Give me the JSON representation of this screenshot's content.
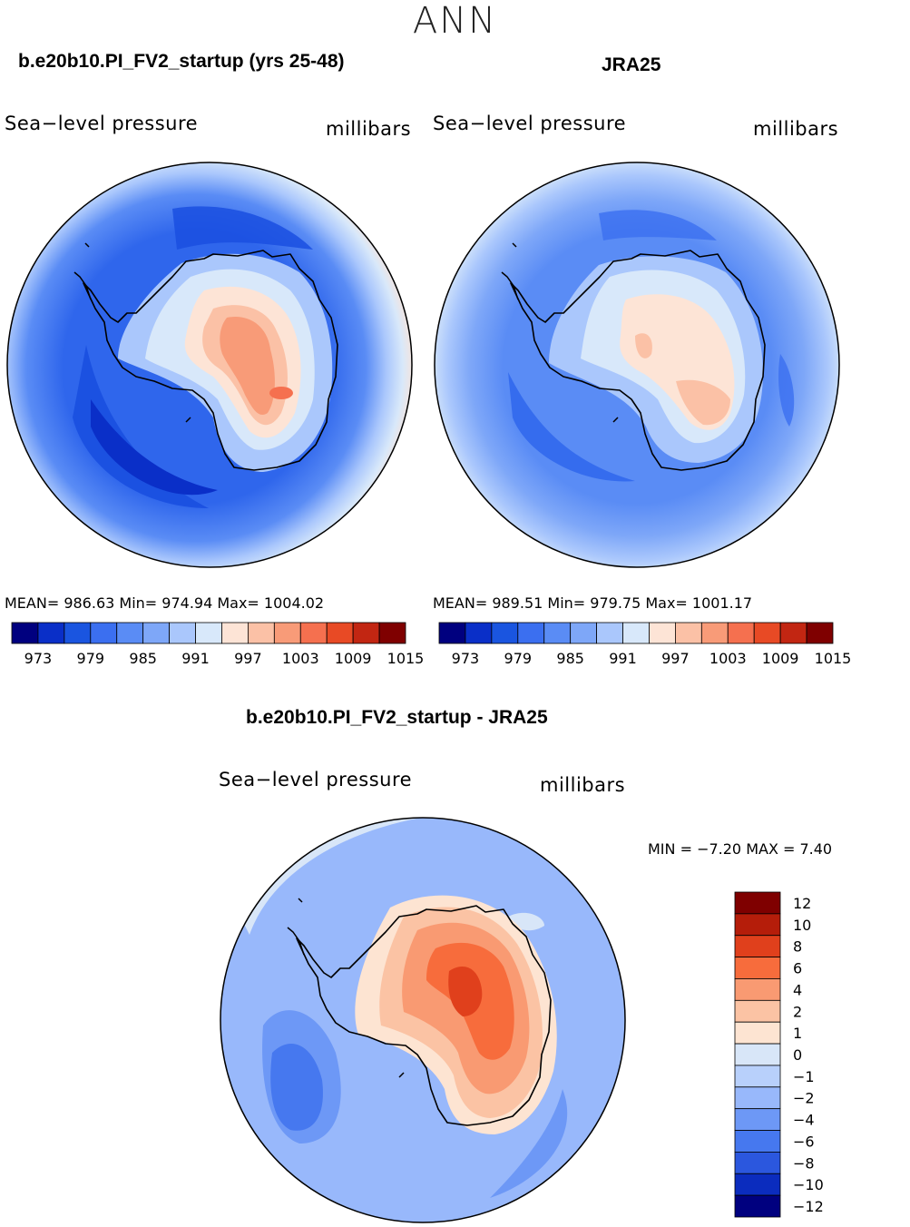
{
  "figure": {
    "season": "ANN",
    "diff_title": "b.e20b10.PI_FV2_startup - JRA25",
    "diff_minmax": "MIN =   −7.20 MAX =    7.40"
  },
  "panels": [
    {
      "title": "b.e20b10.PI_FV2_startup (yrs 25-48)",
      "left_label": "Sea−level pressure",
      "right_label": "millibars",
      "stats": "MEAN=  986.63   Min=  974.94   Max=  1004.02"
    },
    {
      "title": "JRA25",
      "left_label": "Sea−level pressure",
      "right_label": "millibars",
      "stats": "MEAN=  989.51   Min=  979.75   Max=  1001.17"
    },
    {
      "left_label": "Sea−level pressure",
      "right_label": "millibars"
    }
  ],
  "colors": {
    "mean_scale": [
      "#00007f",
      "#0a2fc8",
      "#1a55e0",
      "#3b6ff0",
      "#5a8cf5",
      "#7ea7f8",
      "#aac7fc",
      "#d8e8fa",
      "#fde4d6",
      "#fbc1a6",
      "#f89b78",
      "#f5704f",
      "#e84a25",
      "#c22612",
      "#7f0000"
    ],
    "diff_scale": [
      "#7f0000",
      "#b51d0a",
      "#e0401c",
      "#f76c3c",
      "#f99a72",
      "#fbc3a4",
      "#fde4d2",
      "#d8e6f8",
      "#b8d0fb",
      "#98b8fb",
      "#6d98f6",
      "#4678ef",
      "#2b57de",
      "#0b2cbe",
      "#00007f"
    ]
  },
  "chart_data": [
    {
      "type": "heatmap",
      "title": "b.e20b10.PI_FV2_startup (yrs 25-48)",
      "variable": "Sea-level pressure",
      "units": "millibars",
      "projection": "south-polar-stereographic",
      "mean": 986.63,
      "min": 974.94,
      "max": 1004.02,
      "colorbar_levels": [
        973,
        976,
        979,
        982,
        985,
        988,
        991,
        994,
        997,
        1000,
        1003,
        1006,
        1009,
        1012,
        1015
      ],
      "colorbar_tick_labels": [
        "973",
        "979",
        "985",
        "991",
        "997",
        "1003",
        "1009",
        "1015"
      ],
      "colorbar_position": "bottom"
    },
    {
      "type": "heatmap",
      "title": "JRA25",
      "variable": "Sea-level pressure",
      "units": "millibars",
      "projection": "south-polar-stereographic",
      "mean": 989.51,
      "min": 979.75,
      "max": 1001.17,
      "colorbar_levels": [
        973,
        976,
        979,
        982,
        985,
        988,
        991,
        994,
        997,
        1000,
        1003,
        1006,
        1009,
        1012,
        1015
      ],
      "colorbar_tick_labels": [
        "973",
        "979",
        "985",
        "991",
        "997",
        "1003",
        "1009",
        "1015"
      ],
      "colorbar_position": "bottom"
    },
    {
      "type": "heatmap",
      "title": "b.e20b10.PI_FV2_startup - JRA25",
      "variable": "Sea-level pressure",
      "units": "millibars",
      "projection": "south-polar-stereographic",
      "min": -7.2,
      "max": 7.4,
      "colorbar_levels": [
        12,
        10,
        8,
        6,
        4,
        2,
        1,
        0,
        -1,
        -2,
        -4,
        -6,
        -8,
        -10,
        -12
      ],
      "colorbar_tick_labels": [
        "12",
        "10",
        "8",
        "6",
        "4",
        "2",
        "1",
        "0",
        "−1",
        "−2",
        "−4",
        "−6",
        "−8",
        "−10",
        "−12"
      ],
      "colorbar_position": "right"
    }
  ]
}
